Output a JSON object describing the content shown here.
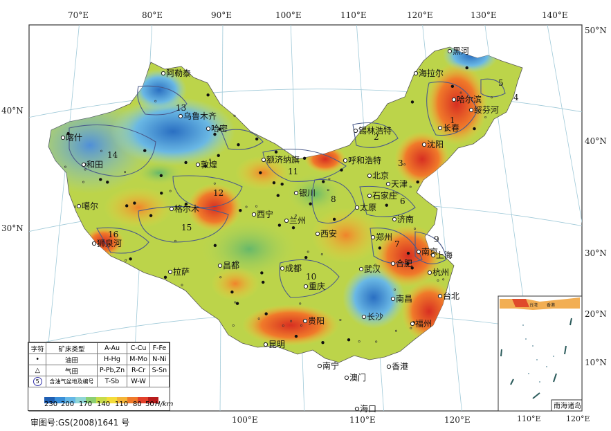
{
  "map": {
    "longitude_top_labels": [
      "70°E",
      "80°E",
      "90°E",
      "100°E",
      "110°E",
      "120°E",
      "130°E",
      "140°E"
    ],
    "longitude_bottom_labels": [
      "100°E",
      "110°E",
      "120°E"
    ],
    "latitude_left_labels": [
      "40°N",
      "30°N"
    ],
    "latitude_right_labels": [
      "50°N",
      "40°N",
      "30°N",
      "20°N",
      "10°N"
    ],
    "inset": {
      "title": "南海诸岛",
      "lon_labels": [
        "110°E",
        "120°E"
      ],
      "mini_cities": [
        "台湾",
        "香港"
      ]
    },
    "cities": [
      "阿勒泰",
      "乌鲁木齐",
      "哈密",
      "喀什",
      "和田",
      "噶尔",
      "格尔木",
      "敦煌",
      "额济纳旗",
      "拉萨",
      "昌都",
      "成都",
      "重庆",
      "昆明",
      "贵阳",
      "南宁",
      "海口",
      "澳门",
      "香港",
      "福州",
      "台北",
      "长沙",
      "武汉",
      "南昌",
      "合肥",
      "南京",
      "上海",
      "杭州",
      "郑州",
      "济南",
      "太原",
      "石家庄",
      "北京",
      "天津",
      "呼和浩特",
      "银川",
      "兰州",
      "西宁",
      "西安",
      "沈阳",
      "长春",
      "哈尔滨",
      "海拉尔",
      "黑河",
      "绥芬河",
      "锡林浩特",
      "狮泉河"
    ],
    "basin_numbers": [
      "1",
      "2",
      "3",
      "4",
      "5",
      "6",
      "7",
      "8",
      "9",
      "10",
      "11",
      "12",
      "13",
      "14",
      "15",
      "16"
    ],
    "heat_colors": {
      "dark_blue": "#2f7fc8",
      "blue": "#5aa7e0",
      "cyan": "#7fd0e6",
      "green": "#79c26d",
      "yellow_green": "#c8d84a",
      "yellow": "#f5dc3c",
      "orange": "#f39a2d",
      "red": "#e8462b",
      "dark_red": "#c41f1f"
    }
  },
  "legend": {
    "headers": [
      "字符",
      "矿床类型",
      "A-Au",
      "C-Cu",
      "F-Fe"
    ],
    "rows": [
      [
        "•",
        "油田",
        "H-Hg",
        "M-Mo",
        "N-Ni"
      ],
      [
        "△",
        "气田",
        "P-Pb,Zn",
        "R-Cr",
        "S-Sn"
      ],
      [
        "5",
        "含油气盆地及编号",
        "T-Sb",
        "W-W",
        ""
      ]
    ],
    "scale_values": [
      "230",
      "200",
      "170",
      "140",
      "110",
      "80",
      "50"
    ],
    "scale_unit": "H/km",
    "scale_colors": [
      "#1f5fb3",
      "#3a8fd8",
      "#66b8e6",
      "#8fd6d6",
      "#8ccf73",
      "#c8dc4a",
      "#f4dd3a",
      "#f5b537",
      "#f07a2a",
      "#e2402a",
      "#b81c1c"
    ]
  },
  "approval_text": "审图号:GS(2008)1641 号"
}
